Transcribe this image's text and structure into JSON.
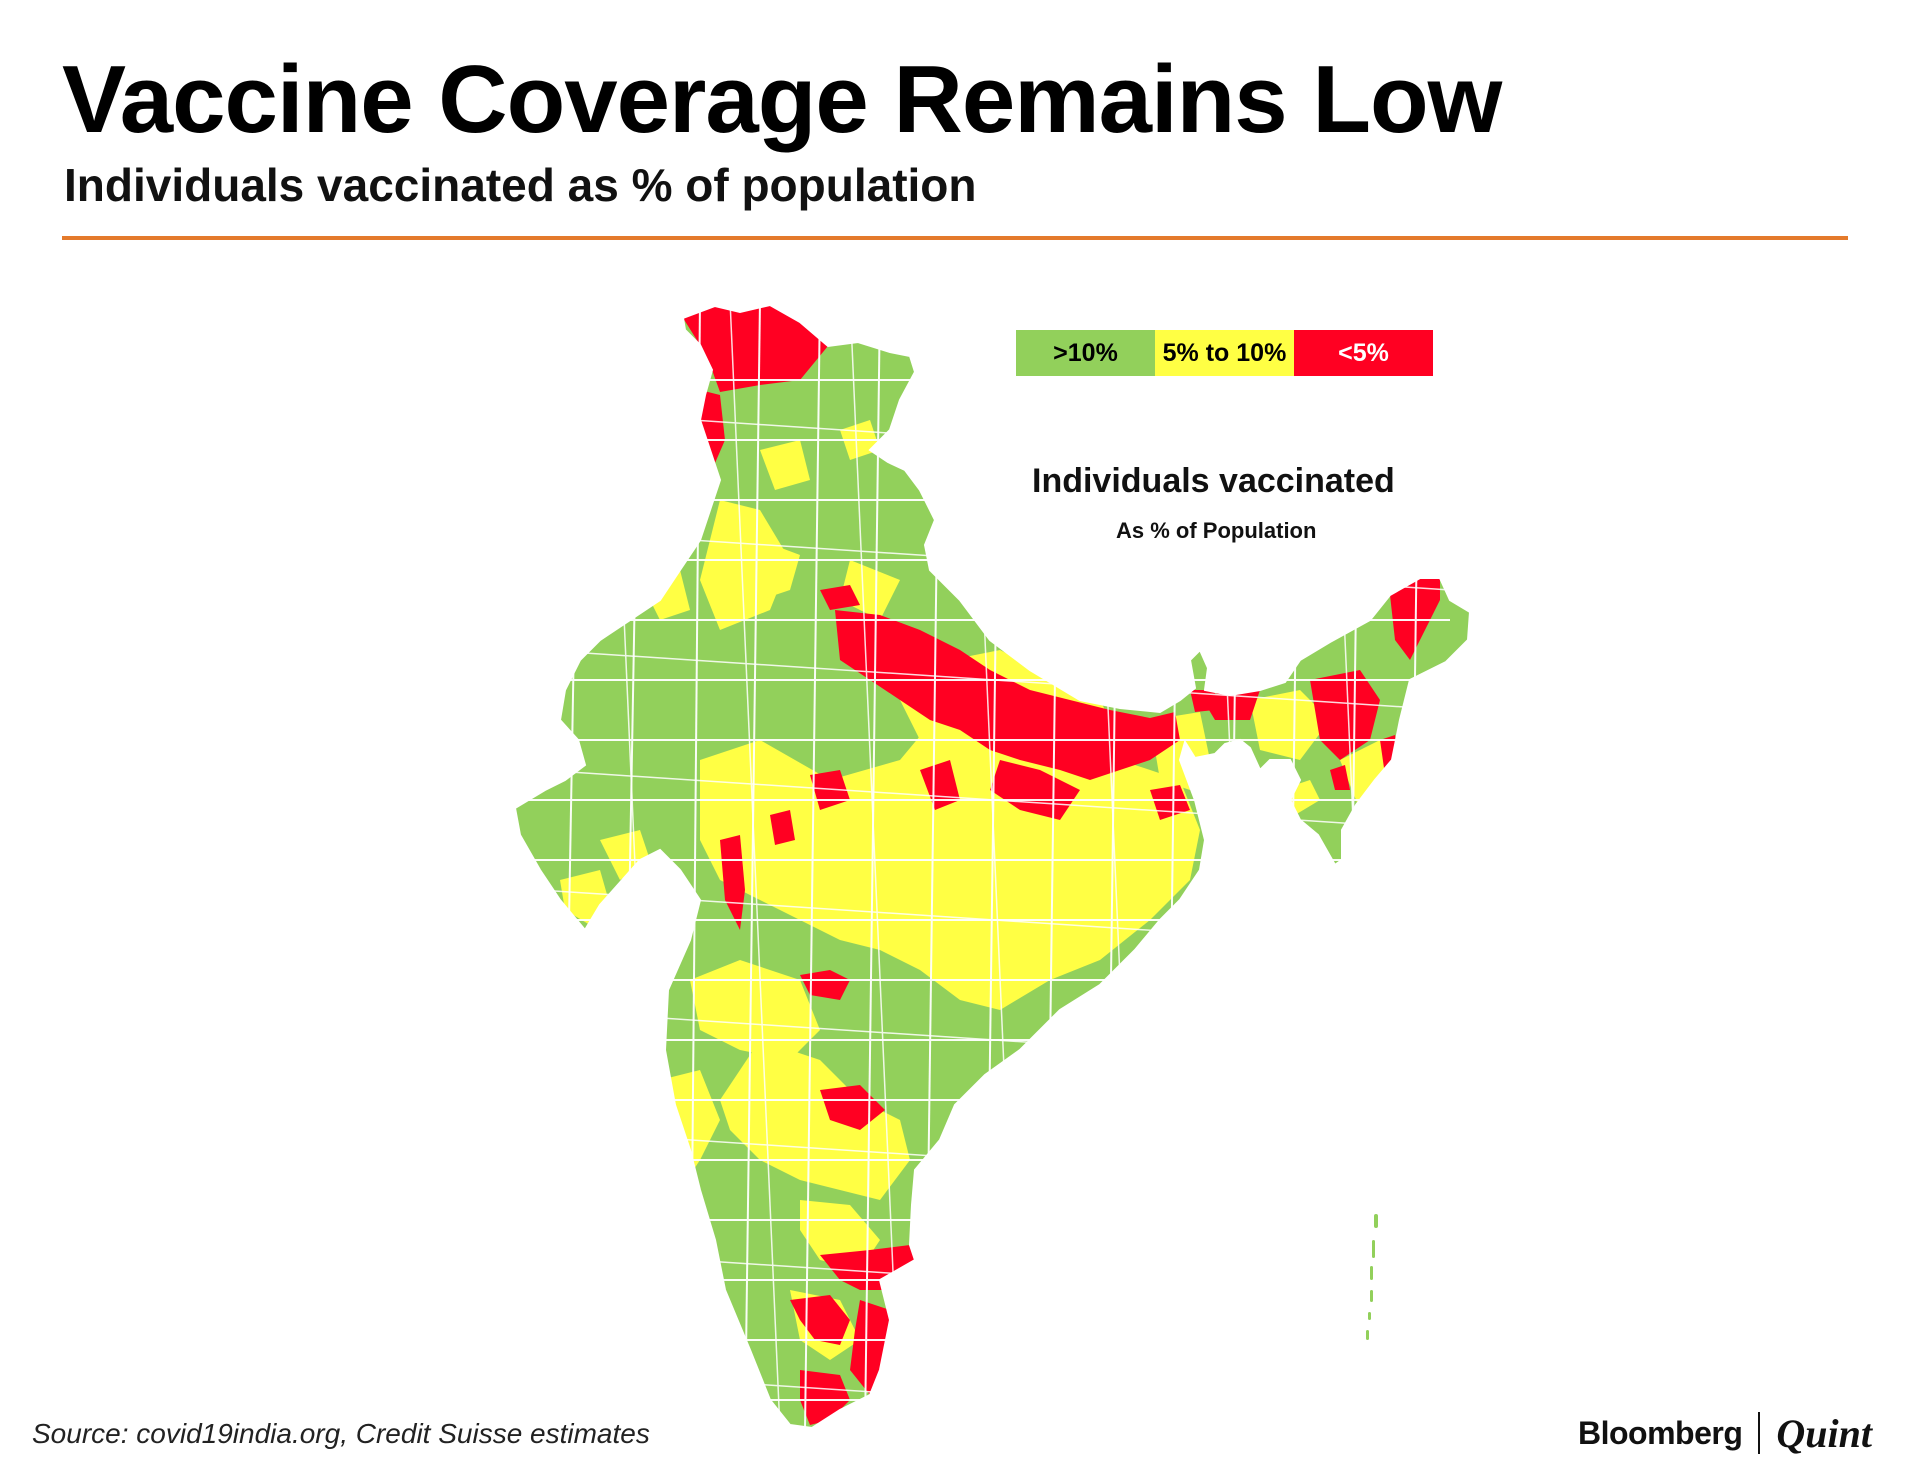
{
  "header": {
    "title": "Vaccine Coverage Remains Low",
    "subtitle": "Individuals vaccinated as % of population",
    "rule_color": "#e47a2b"
  },
  "map": {
    "subject": "India districts",
    "title": "Individuals vaccinated",
    "subtitle": "As % of Population",
    "legend": [
      {
        "label": ">10%",
        "color": "#92d05b"
      },
      {
        "label": "5% to 10%",
        "color": "#ffff44"
      },
      {
        "label": "<5%",
        "color": "#ff0022"
      }
    ],
    "border_color": "#ffffff"
  },
  "footer": {
    "source": "Source: covid19india.org, Credit Suisse estimates",
    "brand_primary": "Bloomberg",
    "brand_secondary": "Quint"
  }
}
